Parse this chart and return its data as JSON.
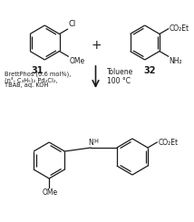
{
  "bg_color": "#ffffff",
  "line_color": "#1a1a1a",
  "text_color": "#1a1a1a",
  "compound31_label": "31",
  "compound32_label": "32",
  "reagent_left_line1": "BrettPhos (0.6 mol%),",
  "reagent_left_line2": "(η³- C₃H₅)₂ Pd₂Cl₂,",
  "reagent_left_line3": "TBAB, aq. KOH",
  "reagent_right_line1": "Toluene",
  "reagent_right_line2": "100 °C",
  "sub_cl": "Cl",
  "sub_ome_31": "OMe",
  "sub_co2et_32": "CO₂Et",
  "sub_nh2_32": "NH₂",
  "sub_n": "N",
  "sub_h": "H",
  "sub_ome_prod": "OMe",
  "sub_co2et_prod": "CO₂Et",
  "plus_sign": "+",
  "figsize": [
    2.14,
    2.45
  ],
  "dpi": 100
}
